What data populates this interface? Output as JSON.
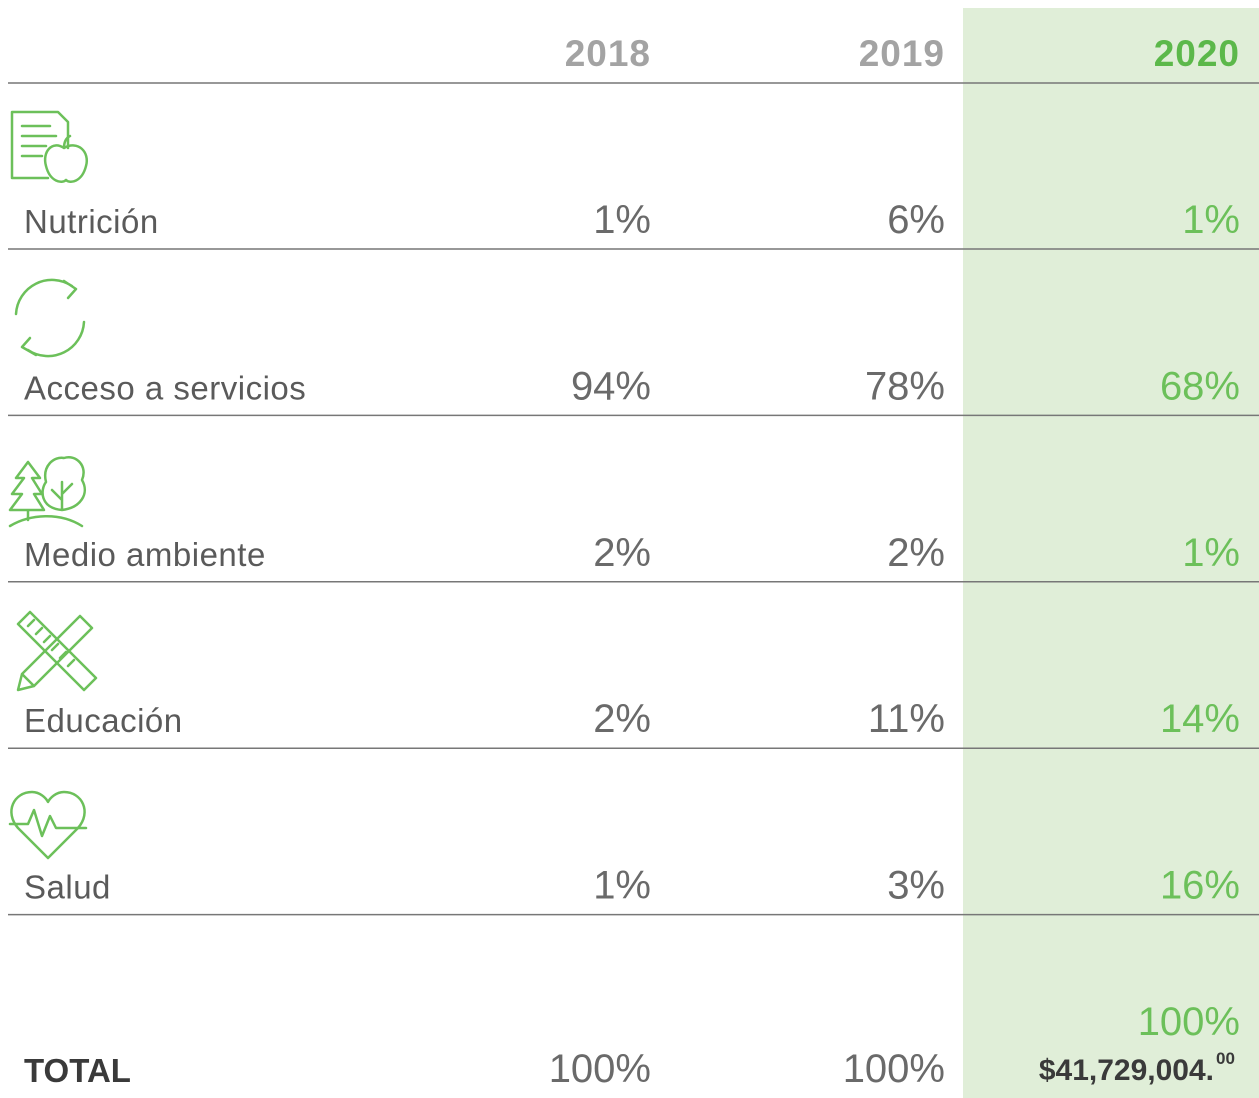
{
  "table": {
    "header": [
      "2018",
      "2019",
      "2020"
    ],
    "rows": [
      {
        "label": "Nutrición",
        "cells": [
          "1%",
          "6%",
          "1%"
        ]
      },
      {
        "label": "Acceso a servicios",
        "cells": [
          "94%",
          "78%",
          "68%"
        ]
      },
      {
        "label": "Medio ambiente",
        "cells": [
          "2%",
          "2%",
          "1%"
        ]
      },
      {
        "label": "Educación",
        "cells": [
          "2%",
          "11%",
          "14%"
        ]
      },
      {
        "label": "Salud",
        "cells": [
          "1%",
          "3%",
          "16%"
        ]
      }
    ],
    "total": {
      "label": "TOTAL",
      "cells": [
        "100%",
        "100%",
        "100%"
      ],
      "amount": "$41,729,004.",
      "cents": "00"
    }
  }
}
